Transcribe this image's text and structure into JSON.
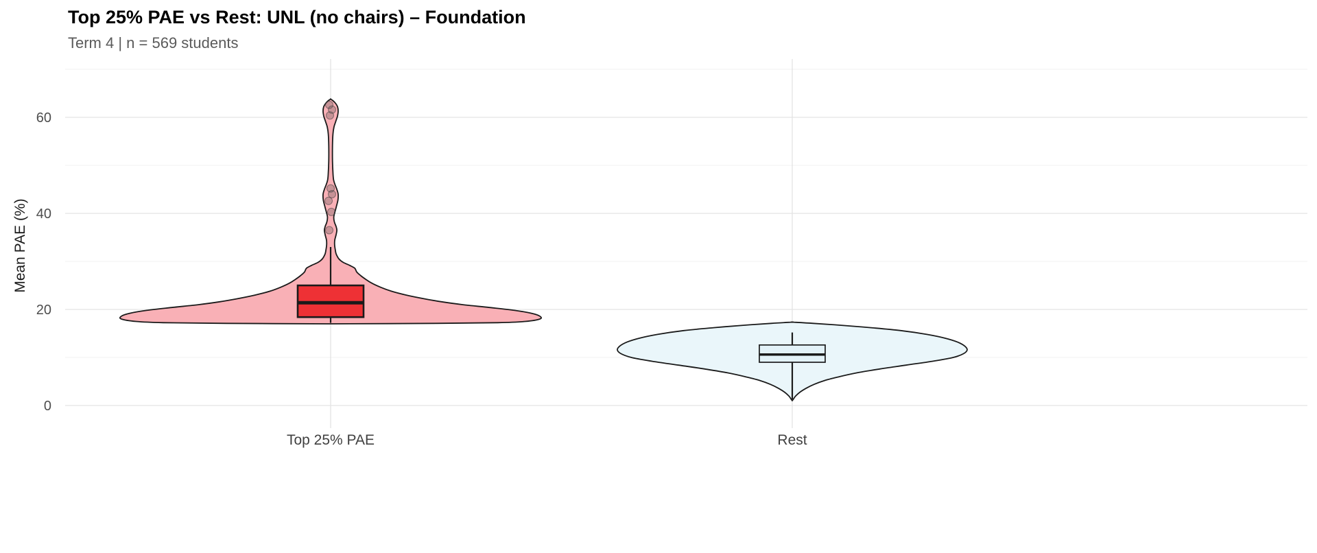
{
  "chart_data": {
    "type": "violin",
    "title": "Top 25% PAE vs Rest: UNL (no chairs) – Foundation",
    "subtitle": "Term 4 | n = 569 students",
    "ylabel": "Mean PAE (%)",
    "xlabel": "",
    "ylim": [
      -5,
      72
    ],
    "yticks": [
      0,
      20,
      40,
      60
    ],
    "yticks_minor": [
      10,
      30,
      50,
      70
    ],
    "background": "#ffffff",
    "grid_color": "#e3e3e3",
    "grid_minor_color": "#f1f1f1",
    "legend": "none",
    "groups": [
      {
        "label": "Top 25% PAE",
        "violin_fill": "#f9b0b6",
        "violin_stroke": "#1a1a1a",
        "box_fill": "#ee3135",
        "box_stroke": "#1a1a1a",
        "box": {
          "q1": 18.4,
          "median": 21.4,
          "q3": 25.0,
          "whisker_low": 17.2,
          "whisker_high": 33.0
        },
        "outliers": [
          36.5,
          40.3,
          42.6,
          44.0,
          45.2,
          60.4,
          61.6,
          62.6
        ],
        "violin_range": [
          17.0,
          63.8
        ],
        "violin_profile": [
          [
            17.0,
            0.0
          ],
          [
            17.1,
            0.5
          ],
          [
            17.25,
            0.8
          ],
          [
            17.5,
            0.93
          ],
          [
            18.0,
            1.0
          ],
          [
            18.6,
            1.0
          ],
          [
            19.2,
            0.96
          ],
          [
            19.8,
            0.88
          ],
          [
            20.4,
            0.76
          ],
          [
            21.0,
            0.63
          ],
          [
            21.6,
            0.53
          ],
          [
            22.2,
            0.45
          ],
          [
            23.0,
            0.36
          ],
          [
            23.8,
            0.29
          ],
          [
            24.6,
            0.24
          ],
          [
            25.4,
            0.2
          ],
          [
            26.2,
            0.17
          ],
          [
            27.0,
            0.145
          ],
          [
            27.8,
            0.125
          ],
          [
            28.6,
            0.115
          ],
          [
            29.2,
            0.09
          ],
          [
            29.8,
            0.06
          ],
          [
            30.5,
            0.04
          ],
          [
            31.5,
            0.027
          ],
          [
            32.5,
            0.022
          ],
          [
            33.5,
            0.019
          ],
          [
            34.5,
            0.02
          ],
          [
            35.5,
            0.026
          ],
          [
            36.5,
            0.03
          ],
          [
            37.3,
            0.026
          ],
          [
            38.2,
            0.018
          ],
          [
            39.2,
            0.015
          ],
          [
            40.2,
            0.02
          ],
          [
            41.5,
            0.028
          ],
          [
            42.8,
            0.035
          ],
          [
            44.0,
            0.036
          ],
          [
            45.0,
            0.03
          ],
          [
            46.0,
            0.021
          ],
          [
            47.0,
            0.014
          ],
          [
            48.5,
            0.011
          ],
          [
            51.0,
            0.009
          ],
          [
            54.0,
            0.009
          ],
          [
            56.5,
            0.011
          ],
          [
            58.0,
            0.016
          ],
          [
            59.2,
            0.025
          ],
          [
            60.3,
            0.033
          ],
          [
            61.3,
            0.036
          ],
          [
            62.2,
            0.033
          ],
          [
            63.0,
            0.022
          ],
          [
            63.5,
            0.01
          ],
          [
            63.8,
            0.0
          ]
        ]
      },
      {
        "label": "Rest",
        "violin_fill": "#eaf6fa",
        "violin_stroke": "#1a1a1a",
        "box_fill": "#e3f2f8",
        "box_stroke": "#1a1a1a",
        "box": {
          "q1": 9.0,
          "median": 10.6,
          "q3": 12.6,
          "whisker_low": 1.3,
          "whisker_high": 15.2
        },
        "outliers": [],
        "violin_range": [
          1.0,
          17.35
        ],
        "violin_profile": [
          [
            1.0,
            0.0
          ],
          [
            1.4,
            0.008
          ],
          [
            2.0,
            0.02
          ],
          [
            2.8,
            0.045
          ],
          [
            3.6,
            0.08
          ],
          [
            4.4,
            0.125
          ],
          [
            5.2,
            0.185
          ],
          [
            6.0,
            0.27
          ],
          [
            6.8,
            0.37
          ],
          [
            7.6,
            0.5
          ],
          [
            8.4,
            0.65
          ],
          [
            9.2,
            0.8
          ],
          [
            10.0,
            0.92
          ],
          [
            10.8,
            0.98
          ],
          [
            11.6,
            1.0
          ],
          [
            12.4,
            0.985
          ],
          [
            13.2,
            0.945
          ],
          [
            14.0,
            0.875
          ],
          [
            14.8,
            0.77
          ],
          [
            15.6,
            0.62
          ],
          [
            16.2,
            0.45
          ],
          [
            16.7,
            0.28
          ],
          [
            17.1,
            0.12
          ],
          [
            17.35,
            0.0
          ]
        ]
      }
    ]
  }
}
